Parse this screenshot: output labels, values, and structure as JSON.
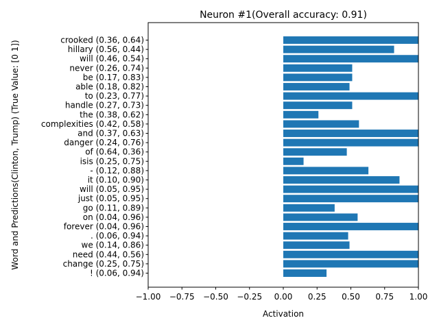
{
  "chart_data": {
    "type": "bar",
    "orientation": "horizontal",
    "title": "Neuron #1(Overall accuracy: 0.91)",
    "xlabel": "Activation",
    "ylabel": "Word and Predictions(Clinton, Trump) (True Value: [0 1])",
    "xlim": [
      -1.0,
      1.0
    ],
    "xticks": [
      "−1.00",
      "−0.75",
      "−0.50",
      "−0.25",
      "0.00",
      "0.25",
      "0.50",
      "0.75",
      "1.00"
    ],
    "grid": false,
    "bar_color": "#1f77b4",
    "categories": [
      "crooked (0.36, 0.64)",
      "hillary (0.56, 0.44)",
      "will (0.46, 0.54)",
      "never (0.26, 0.74)",
      "be (0.17, 0.83)",
      "able (0.18, 0.82)",
      "to (0.23, 0.77)",
      "handle (0.27, 0.73)",
      "the (0.38, 0.62)",
      "complexities (0.42, 0.58)",
      "and (0.37, 0.63)",
      "danger (0.24, 0.76)",
      "of (0.64, 0.36)",
      "isis (0.25, 0.75)",
      "- (0.12, 0.88)",
      "it (0.10, 0.90)",
      "will (0.05, 0.95)",
      "just (0.05, 0.95)",
      "go (0.11, 0.89)",
      "on (0.04, 0.96)",
      "forever (0.04, 0.96)",
      ". (0.06, 0.94)",
      "we (0.14, 0.86)",
      "need (0.44, 0.56)",
      "change (0.25, 0.75)",
      "! (0.06, 0.94)"
    ],
    "values": [
      1.0,
      0.82,
      1.0,
      0.51,
      0.51,
      0.49,
      1.0,
      0.51,
      0.26,
      0.56,
      1.0,
      1.0,
      0.47,
      0.15,
      0.63,
      0.86,
      1.0,
      1.0,
      0.38,
      0.55,
      1.0,
      0.48,
      0.49,
      1.0,
      1.0,
      0.32
    ]
  }
}
